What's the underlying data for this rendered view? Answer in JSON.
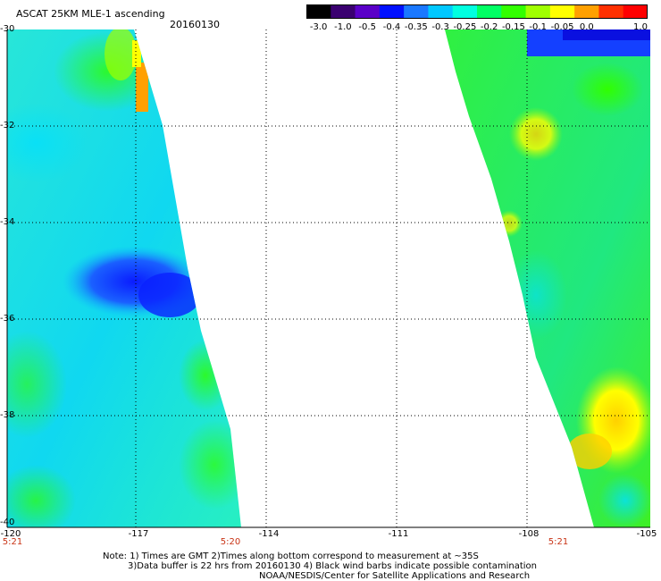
{
  "header": {
    "title": "ASCAT 25KM MLE-1 ascending",
    "date": "20160130"
  },
  "colorbar": {
    "labels": [
      "-3.0",
      "-1.0",
      "-0.5",
      "-0.4",
      "-0.35",
      "-0.3",
      "-0.25",
      "-0.2",
      "-0.15",
      "-0.1",
      "-0.05",
      "0.0",
      "1.0"
    ],
    "colors": [
      "#000000",
      "#3a0070",
      "#5a00c8",
      "#0010ff",
      "#1a78ff",
      "#00c8ff",
      "#00ffe0",
      "#00ff64",
      "#32ff00",
      "#a0ff00",
      "#ffff00",
      "#ffa000",
      "#ff3000",
      "#ff0000"
    ]
  },
  "map": {
    "y_ticks": [
      "-30",
      "-32",
      "-34",
      "-36",
      "-38",
      "-40"
    ],
    "x_ticks": [
      "-120",
      "-117",
      "-114",
      "-111",
      "-108",
      "-105"
    ],
    "time_labels": [
      "5:21",
      "5:20",
      "5:21"
    ]
  },
  "notes": {
    "line1": "Note: 1) Times are GMT 2)Times along bottom correspond to measurement at ~35S",
    "line2": "3)Data buffer is 22 hrs from 20160130 4) Black wind barbs indicate possible contamination",
    "line3": "NOAA/NESDIS/Center for Satellite Applications and Research"
  }
}
